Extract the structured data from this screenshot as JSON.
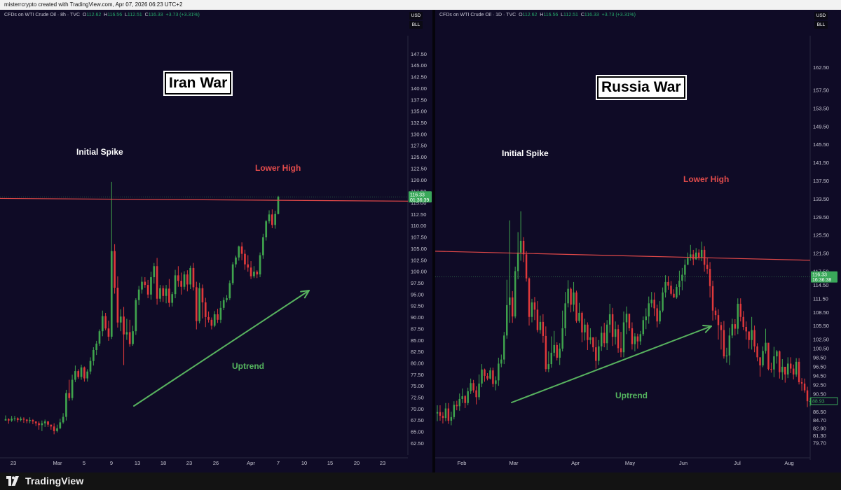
{
  "header": {
    "creator_line": "misterrcrypto created with TradingView.com, Apr 07, 2026 06:23 UTC+2"
  },
  "footer": {
    "brand": "TradingView"
  },
  "colors": {
    "background": "#0f0b26",
    "up": "#3fa34d",
    "down": "#e0393b",
    "resistance": "#e04848",
    "arrow": "#58b35f",
    "price_tag": "#3aa85a"
  },
  "chart_data": [
    {
      "type": "candlestick",
      "symbol_line": {
        "name": "CFDs on WTI Crude Oil · 8h · TVC",
        "o_label": "O",
        "o": "112.62",
        "h_label": "H",
        "h": "116.56",
        "l_label": "L",
        "l": "112.51",
        "c_label": "C",
        "c": "116.33",
        "change": "+3.73 (+3.31%)"
      },
      "units": [
        "USD",
        "BLL"
      ],
      "title": "Iran War",
      "annotations": {
        "spike": "Initial Spike",
        "lower_high": "Lower High",
        "trend": "Uptrend"
      },
      "y_range": [
        61.5,
        150
      ],
      "y_ticks": [
        "147.50",
        "145.00",
        "142.50",
        "140.00",
        "137.50",
        "135.00",
        "132.50",
        "130.00",
        "127.50",
        "125.00",
        "122.50",
        "120.00",
        "117.50",
        "115.00",
        "112.50",
        "110.00",
        "107.50",
        "105.00",
        "102.50",
        "100.00",
        "97.50",
        "95.00",
        "92.50",
        "90.00",
        "87.50",
        "85.00",
        "82.50",
        "80.00",
        "77.50",
        "75.00",
        "72.50",
        "70.00",
        "67.50",
        "65.00",
        "62.50"
      ],
      "x_ticks": [
        "23",
        "Mar",
        "5",
        "9",
        "13",
        "18",
        "23",
        "26",
        "Apr",
        "7",
        "10",
        "15",
        "20",
        "23"
      ],
      "last_price": "116.33",
      "countdown": "01:36:39",
      "resistance_level": [
        116.0,
        115.4
      ],
      "closes": [
        67.8,
        67.5,
        67.9,
        68.0,
        67.6,
        67.9,
        67.7,
        67.4,
        67.6,
        67.3,
        66.9,
        66.5,
        66.9,
        67.3,
        66.6,
        66.2,
        65.2,
        65.8,
        67.1,
        68.3,
        73.5,
        72.4,
        76.4,
        78.3,
        77.0,
        79.1,
        76.7,
        78.2,
        80.5,
        82.9,
        84.3,
        87.0,
        90.3,
        87.6,
        85.8,
        104.5,
        96.5,
        88.9,
        90.2,
        86.3,
        86.8,
        84.2,
        87.0,
        93.8,
        96.1,
        97.8,
        97.1,
        95.0,
        98.8,
        101.2,
        94.1,
        96.4,
        94.7,
        96.3,
        93.2,
        95.1,
        99.2,
        98.0,
        96.7,
        99.4,
        97.2,
        100.8,
        96.6,
        89.2,
        96.4,
        93.3,
        90.1,
        89.5,
        88.2,
        90.7,
        89.5,
        92.1,
        93.8,
        94.2,
        97.5,
        101.6,
        103.1,
        105.5,
        103.9,
        101.6,
        100.9,
        99.0,
        100.0,
        99.4,
        103.6,
        107.5,
        111.0,
        112.5,
        110.2,
        112.6,
        116.33
      ],
      "ranges": [
        [
          67.5,
          68.6
        ],
        [
          66.8,
          68.0
        ],
        [
          67.2,
          68.5
        ],
        [
          67.4,
          68.5
        ],
        [
          67.1,
          68.2
        ],
        [
          67.3,
          68.3
        ],
        [
          67.0,
          68.2
        ],
        [
          66.9,
          67.8
        ],
        [
          66.9,
          68.2
        ],
        [
          66.7,
          67.8
        ],
        [
          66.3,
          67.3
        ],
        [
          65.5,
          67.3
        ],
        [
          65.2,
          67.5
        ],
        [
          66.1,
          67.7
        ],
        [
          66.1,
          67.4
        ],
        [
          65.5,
          66.6
        ],
        [
          64.5,
          66.9
        ],
        [
          64.9,
          66.6
        ],
        [
          65.6,
          67.9
        ],
        [
          66.8,
          69.1
        ],
        [
          67.5,
          74.2
        ],
        [
          71.8,
          76.4
        ],
        [
          71.9,
          77.5
        ],
        [
          75.9,
          79.5
        ],
        [
          76.6,
          78.7
        ],
        [
          76.4,
          79.7
        ],
        [
          76.0,
          79.3
        ],
        [
          76.0,
          78.7
        ],
        [
          77.6,
          81.3
        ],
        [
          79.5,
          83.5
        ],
        [
          81.8,
          84.9
        ],
        [
          83.8,
          87.4
        ],
        [
          85.9,
          91.5
        ],
        [
          87.2,
          91.0
        ],
        [
          84.9,
          89.3
        ],
        [
          85.3,
          119.6
        ],
        [
          95.2,
          106.0
        ],
        [
          87.8,
          99.0
        ],
        [
          87.0,
          91.8
        ],
        [
          79.6,
          92.3
        ],
        [
          85.1,
          89.7
        ],
        [
          83.6,
          89.5
        ],
        [
          83.8,
          88.2
        ],
        [
          86.2,
          94.2
        ],
        [
          92.7,
          96.9
        ],
        [
          95.2,
          98.9
        ],
        [
          96.5,
          98.8
        ],
        [
          94.2,
          98.2
        ],
        [
          93.9,
          100.0
        ],
        [
          97.4,
          101.9
        ],
        [
          92.8,
          103.0
        ],
        [
          93.4,
          97.1
        ],
        [
          93.4,
          97.0
        ],
        [
          93.1,
          97.1
        ],
        [
          92.3,
          98.4
        ],
        [
          92.4,
          95.6
        ],
        [
          94.2,
          100.4
        ],
        [
          96.7,
          101.2
        ],
        [
          95.0,
          99.8
        ],
        [
          96.1,
          100.1
        ],
        [
          95.7,
          100.3
        ],
        [
          96.2,
          101.3
        ],
        [
          95.9,
          101.9
        ],
        [
          87.4,
          97.8
        ],
        [
          88.7,
          97.6
        ],
        [
          89.8,
          97.2
        ],
        [
          87.9,
          94.3
        ],
        [
          88.9,
          91.3
        ],
        [
          87.4,
          90.0
        ],
        [
          87.9,
          91.4
        ],
        [
          88.8,
          91.9
        ],
        [
          88.8,
          93.6
        ],
        [
          91.6,
          94.4
        ],
        [
          93.3,
          94.9
        ],
        [
          93.8,
          98.1
        ],
        [
          97.1,
          102.1
        ],
        [
          100.9,
          103.5
        ],
        [
          102.4,
          105.7
        ],
        [
          102.5,
          106.4
        ],
        [
          100.4,
          104.8
        ],
        [
          100.0,
          103.6
        ],
        [
          98.4,
          102.3
        ],
        [
          98.6,
          101.2
        ],
        [
          98.6,
          100.3
        ],
        [
          98.8,
          104.2
        ],
        [
          102.8,
          108.3
        ],
        [
          106.8,
          111.3
        ],
        [
          110.5,
          113.4
        ],
        [
          109.5,
          113.6
        ],
        [
          109.4,
          113.3
        ],
        [
          112.51,
          116.56
        ]
      ]
    },
    {
      "type": "candlestick",
      "symbol_line": {
        "name": "CFDs on WTI Crude Oil · 1D · TVC",
        "o_label": "O",
        "o": "112.62",
        "h_label": "H",
        "h": "116.56",
        "l_label": "L",
        "l": "112.51",
        "c_label": "C",
        "c": "116.33",
        "change": "+3.73 (+3.31%)"
      },
      "units": [
        "USD",
        "BLL"
      ],
      "title": "Russia War",
      "annotations": {
        "spike": "Initial Spike",
        "lower_high": "Lower High",
        "trend": "Uptrend"
      },
      "y_range": [
        77.5,
        168
      ],
      "y_ticks": [
        "162.50",
        "157.50",
        "153.50",
        "149.50",
        "145.50",
        "141.50",
        "137.50",
        "133.50",
        "129.50",
        "125.50",
        "121.50",
        "117.50",
        "114.50",
        "111.50",
        "108.50",
        "105.50",
        "102.50",
        "100.50",
        "98.50",
        "96.50",
        "94.50",
        "92.50",
        "90.50",
        "88.50",
        "86.50",
        "84.70",
        "82.90",
        "81.30",
        "79.70"
      ],
      "x_ticks": [
        "Feb",
        "Mar",
        "Apr",
        "May",
        "Jun",
        "Jul",
        "Aug"
      ],
      "last_price": "116.33",
      "countdown": "16:36:38",
      "bottom_tag": "88.93",
      "resistance_level": [
        122.0,
        120.0
      ],
      "closes": [
        86.5,
        85.7,
        85.2,
        87.3,
        84.6,
        85.4,
        88.1,
        87.8,
        89.4,
        90.0,
        88.5,
        91.1,
        92.9,
        91.3,
        89.8,
        92.8,
        95.9,
        94.5,
        93.9,
        95.7,
        92.7,
        93.5,
        97.2,
        98.1,
        103.4,
        110.1,
        111.8,
        107.6,
        117.6,
        121.7,
        124.3,
        121.3,
        116.0,
        107.5,
        110.7,
        109.1,
        104.6,
        106.4,
        103.3,
        96.0,
        97.1,
        99.6,
        101.3,
        98.5,
        100.5,
        105.0,
        110.5,
        113.7,
        110.2,
        112.9,
        106.6,
        108.4,
        104.1,
        105.8,
        102.4,
        103.0,
        100.8,
        97.8,
        101.0,
        104.0,
        101.7,
        105.8,
        108.1,
        103.1,
        104.8,
        100.6,
        99.7,
        106.3,
        108.2,
        105.0,
        101.5,
        103.2,
        102.1,
        103.7,
        106.8,
        107.6,
        110.5,
        111.3,
        109.4,
        106.5,
        108.9,
        112.9,
        115.2,
        114.4,
        112.6,
        111.8,
        114.1,
        115.5,
        116.8,
        119.0,
        120.5,
        121.3,
        120.2,
        121.7,
        120.6,
        122.3,
        119.0,
        118.1,
        114.3,
        108.9,
        107.9,
        105.7,
        104.6,
        98.8,
        99.0,
        103.4,
        105.9,
        104.9,
        110.4,
        107.5,
        105.3,
        104.3,
        102.4,
        104.6,
        101.0,
        98.6,
        96.8,
        100.0,
        101.8,
        96.0,
        95.9,
        98.8,
        99.9,
        95.3,
        96.5,
        94.8,
        97.2,
        96.1,
        94.8,
        97.6,
        93.1,
        92.8,
        91.3,
        88.9,
        88.93
      ],
      "ranges": [
        [
          84.5,
          88.0
        ],
        [
          84.6,
          88.0
        ],
        [
          84.0,
          86.5
        ],
        [
          84.5,
          88.5
        ],
        [
          83.9,
          88.5
        ],
        [
          83.6,
          86.6
        ],
        [
          84.9,
          88.9
        ],
        [
          86.9,
          89.0
        ],
        [
          86.8,
          90.6
        ],
        [
          88.5,
          91.7
        ],
        [
          87.4,
          90.3
        ],
        [
          88.0,
          91.9
        ],
        [
          90.5,
          93.9
        ],
        [
          90.8,
          93.6
        ],
        [
          88.2,
          92.2
        ],
        [
          89.2,
          94.8
        ],
        [
          92.0,
          97.1
        ],
        [
          93.2,
          96.1
        ],
        [
          93.5,
          95.1
        ],
        [
          93.7,
          96.3
        ],
        [
          92.0,
          96.3
        ],
        [
          91.3,
          94.4
        ],
        [
          92.3,
          98.5
        ],
        [
          96.4,
          99.2
        ],
        [
          97.1,
          104.2
        ],
        [
          102.7,
          115.7
        ],
        [
          106.2,
          128.8
        ],
        [
          106.2,
          113.2
        ],
        [
          107.2,
          118.6
        ],
        [
          115.8,
          126.2
        ],
        [
          119.9,
          130.8
        ],
        [
          119.6,
          125.1
        ],
        [
          115.3,
          122.0
        ],
        [
          105.6,
          116.2
        ],
        [
          106.3,
          111.5
        ],
        [
          106.8,
          111.9
        ],
        [
          104.1,
          111.0
        ],
        [
          103.8,
          107.8
        ],
        [
          101.8,
          108.1
        ],
        [
          95.4,
          105.4
        ],
        [
          95.3,
          99.9
        ],
        [
          96.3,
          103.2
        ],
        [
          98.8,
          104.4
        ],
        [
          97.9,
          101.9
        ],
        [
          96.9,
          101.7
        ],
        [
          99.9,
          108.9
        ],
        [
          103.3,
          113.0
        ],
        [
          109.6,
          115.6
        ],
        [
          108.5,
          114.0
        ],
        [
          108.7,
          115.2
        ],
        [
          106.2,
          113.3
        ],
        [
          106.2,
          110.6
        ],
        [
          101.9,
          108.7
        ],
        [
          102.3,
          107.1
        ],
        [
          100.2,
          106.3
        ],
        [
          101.5,
          105.0
        ],
        [
          99.8,
          103.0
        ],
        [
          96.1,
          103.1
        ],
        [
          96.9,
          102.4
        ],
        [
          100.0,
          105.4
        ],
        [
          100.8,
          106.2
        ],
        [
          100.2,
          106.8
        ],
        [
          104.0,
          110.4
        ],
        [
          101.1,
          109.5
        ],
        [
          101.4,
          106.5
        ],
        [
          99.6,
          105.8
        ],
        [
          98.6,
          104.2
        ],
        [
          98.6,
          108.7
        ],
        [
          103.7,
          109.8
        ],
        [
          104.4,
          108.2
        ],
        [
          100.3,
          106.3
        ],
        [
          99.9,
          103.9
        ],
        [
          100.5,
          103.8
        ],
        [
          101.3,
          104.4
        ],
        [
          103.3,
          107.6
        ],
        [
          104.8,
          109.4
        ],
        [
          106.0,
          112.0
        ],
        [
          109.6,
          113.0
        ],
        [
          107.7,
          112.9
        ],
        [
          105.2,
          110.2
        ],
        [
          105.9,
          111.0
        ],
        [
          108.5,
          114.0
        ],
        [
          111.8,
          116.7
        ],
        [
          113.5,
          116.5
        ],
        [
          112.2,
          115.4
        ],
        [
          111.7,
          113.6
        ],
        [
          111.5,
          114.7
        ],
        [
          112.3,
          117.7
        ],
        [
          113.4,
          118.3
        ],
        [
          115.3,
          120.2
        ],
        [
          119.0,
          121.7
        ],
        [
          119.9,
          123.4
        ],
        [
          118.9,
          122.3
        ],
        [
          120.1,
          122.7
        ],
        [
          120.0,
          122.4
        ],
        [
          119.8,
          124.1
        ],
        [
          117.5,
          123.1
        ],
        [
          117.0,
          120.6
        ],
        [
          111.8,
          119.6
        ],
        [
          106.7,
          115.5
        ],
        [
          106.9,
          109.6
        ],
        [
          102.5,
          109.2
        ],
        [
          100.3,
          106.4
        ],
        [
          98.3,
          106.6
        ],
        [
          97.4,
          100.7
        ],
        [
          96.9,
          105.1
        ],
        [
          102.8,
          107.1
        ],
        [
          103.4,
          107.0
        ],
        [
          103.7,
          111.6
        ],
        [
          106.5,
          111.6
        ],
        [
          104.6,
          108.8
        ],
        [
          102.5,
          106.5
        ],
        [
          100.5,
          104.1
        ],
        [
          100.3,
          107.5
        ],
        [
          99.7,
          105.6
        ],
        [
          97.7,
          101.7
        ],
        [
          94.3,
          98.6
        ],
        [
          96.4,
          101.0
        ],
        [
          99.4,
          104.9
        ],
        [
          95.7,
          101.3
        ],
        [
          95.2,
          97.4
        ],
        [
          94.2,
          100.9
        ],
        [
          97.2,
          100.2
        ],
        [
          93.9,
          100.1
        ],
        [
          93.6,
          98.2
        ],
        [
          93.0,
          96.4
        ],
        [
          94.0,
          98.6
        ],
        [
          95.1,
          98.6
        ],
        [
          93.7,
          97.0
        ],
        [
          94.3,
          98.4
        ],
        [
          92.6,
          98.4
        ],
        [
          91.2,
          94.0
        ],
        [
          90.8,
          93.9
        ],
        [
          87.6,
          92.1
        ],
        [
          87.8,
          89.7
        ]
      ]
    }
  ]
}
